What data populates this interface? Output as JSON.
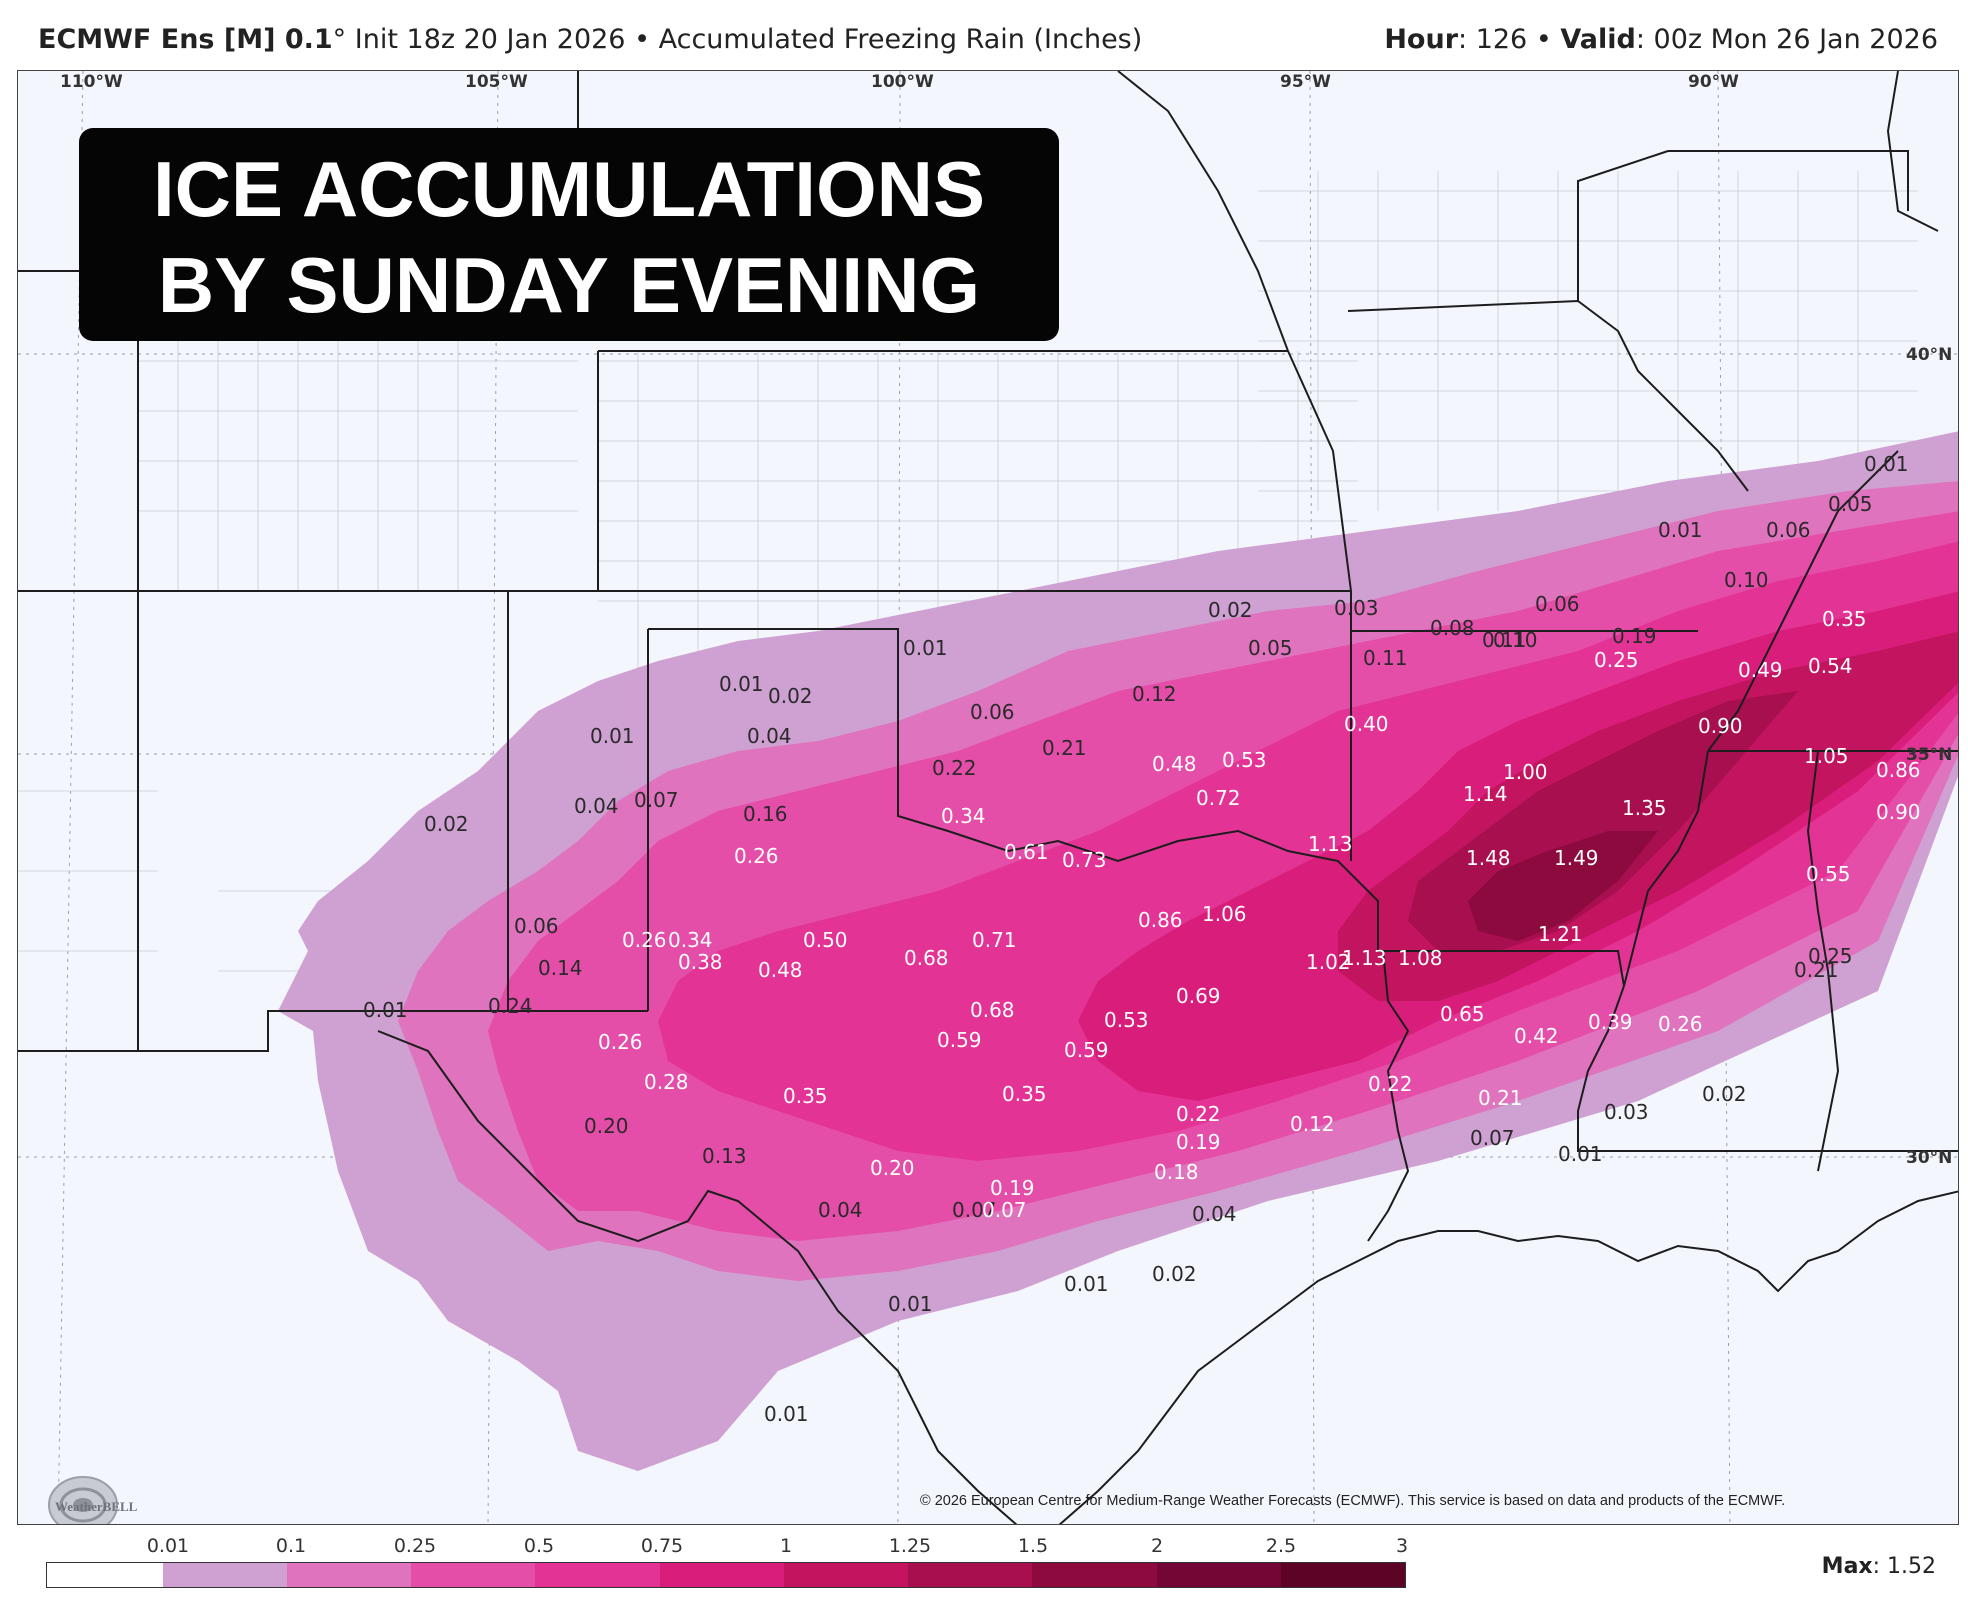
{
  "header": {
    "model": "ECMWF Ens [M] 0.1",
    "degree": "°",
    "init": "Init 18z 20 Jan 2026",
    "separator": "•",
    "product": "Accumulated Freezing Rain (Inches)",
    "hour_label": "Hour",
    "hour_value": ": 126",
    "valid_label": "Valid",
    "valid_value": ": 00z Mon 26 Jan 2026"
  },
  "overlay_title": {
    "line1": "ICE ACCUMULATIONS",
    "line2": "BY SUNDAY EVENING"
  },
  "longitude_labels": [
    "110°W",
    "105°W",
    "100°W",
    "95°W",
    "90°W"
  ],
  "latitude_labels": [
    "40°N",
    "35°N",
    "30°N"
  ],
  "map_values": [
    "0.01",
    "0.05",
    "0.01",
    "0.06",
    "0.10",
    "0.35",
    "0.02",
    "0.03",
    "0.06",
    "0.08",
    "0.11",
    "0.10",
    "0.19",
    "0.25",
    "0.49",
    "0.54",
    "0.01",
    "0.05",
    "0.11",
    "0.01",
    "0.02",
    "0.12",
    "0.06",
    "0.40",
    "0.90",
    "0.01",
    "0.04",
    "0.21",
    "0.22",
    "0.48",
    "0.53",
    "1.00",
    "1.05",
    "0.86",
    "0.04",
    "0.07",
    "0.02",
    "0.16",
    "0.34",
    "0.72",
    "1.14",
    "1.35",
    "0.90",
    "0.61",
    "1.13",
    "0.26",
    "0.73",
    "1.48",
    "1.49",
    "0.55",
    "0.06",
    "1.06",
    "0.86",
    "0.26",
    "0.34",
    "0.50",
    "0.71",
    "1.21",
    "0.14",
    "0.38",
    "0.48",
    "0.68",
    "1.02",
    "1.13",
    "1.08",
    "0.25",
    "0.21",
    "0.01",
    "0.24",
    "0.68",
    "0.69",
    "0.65",
    "0.39",
    "0.26",
    "0.26",
    "0.59",
    "0.53",
    "0.42",
    "0.59",
    "0.28",
    "0.35",
    "0.35",
    "0.22",
    "0.21",
    "0.02",
    "0.22",
    "0.03",
    "0.20",
    "0.19",
    "0.12",
    "0.07",
    "0.13",
    "0.20",
    "0.18",
    "0.01",
    "0.19",
    "0.04",
    "0.07",
    "0.07",
    "0.04",
    "0.02",
    "0.01",
    "0.01",
    "0.01"
  ],
  "copyright": "© 2026 European Centre for Medium-Range Weather Forecasts (ECMWF). This service is based on data and products of the ECMWF.",
  "logo_text": "WeatherBELL",
  "legend": {
    "ticks": [
      "0.01",
      "0.1",
      "0.25",
      "0.5",
      "0.75",
      "1",
      "1.25",
      "1.5",
      "2",
      "2.5",
      "3"
    ],
    "colors": [
      "#ffffff",
      "#cfa1d2",
      "#df73bd",
      "#e44ea8",
      "#e33496",
      "#d81e7a",
      "#c2145f",
      "#a80f4f",
      "#8c0a3e",
      "#730634",
      "#5c0326"
    ],
    "max_label": "Max",
    "max_value": ": 1.52"
  }
}
